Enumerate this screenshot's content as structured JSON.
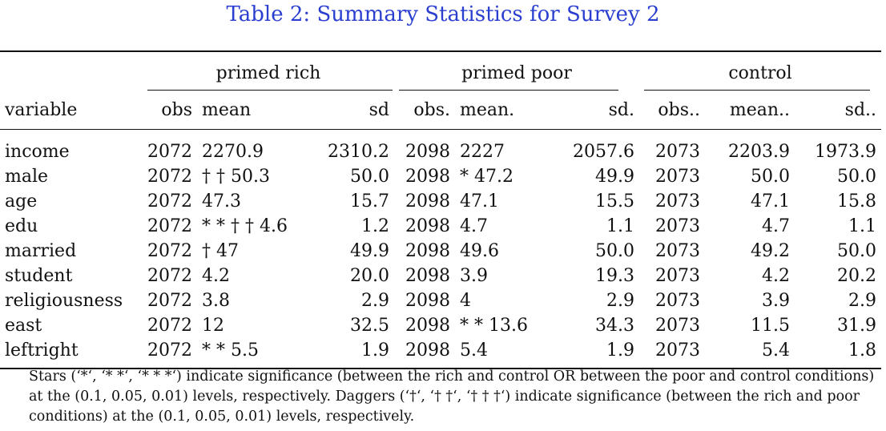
{
  "caption": "Table 2: Summary Statistics for Survey 2",
  "groups": [
    "primed rich",
    "primed poor",
    "control"
  ],
  "headers": [
    "variable",
    "obs",
    "mean",
    "sd",
    "obs.",
    "mean.",
    "sd.",
    "obs..",
    "mean..",
    "sd.."
  ],
  "rows": [
    [
      "income",
      "2072",
      "2270.9",
      "2310.2",
      "2098",
      "2227",
      "2057.6",
      "2073",
      "2203.9",
      "1973.9"
    ],
    [
      "male",
      "2072",
      "† † 50.3",
      "50.0",
      "2098",
      "* 47.2",
      "49.9",
      "2073",
      "50.0",
      "50.0"
    ],
    [
      "age",
      "2072",
      "47.3",
      "15.7",
      "2098",
      "47.1",
      "15.5",
      "2073",
      "47.1",
      "15.8"
    ],
    [
      "edu",
      "2072",
      "* * † † 4.6",
      "1.2",
      "2098",
      "4.7",
      "1.1",
      "2073",
      "4.7",
      "1.1"
    ],
    [
      "married",
      "2072",
      "† 47",
      "49.9",
      "2098",
      "49.6",
      "50.0",
      "2073",
      "49.2",
      "50.0"
    ],
    [
      "student",
      "2072",
      "4.2",
      "20.0",
      "2098",
      "3.9",
      "19.3",
      "2073",
      "4.2",
      "20.2"
    ],
    [
      "religiousness",
      "2072",
      "3.8",
      "2.9",
      "2098",
      "4",
      "2.9",
      "2073",
      "3.9",
      "2.9"
    ],
    [
      "east",
      "2072",
      "12",
      "32.5",
      "2098",
      "* * 13.6",
      "34.3",
      "2073",
      "11.5",
      "31.9"
    ],
    [
      "leftright",
      "2072",
      "* * 5.5",
      "1.9",
      "2098",
      "5.4",
      "1.9",
      "2073",
      "5.4",
      "1.8"
    ]
  ],
  "note": "Stars (‘*‘, ‘* *‘, ‘* * *‘) indicate significance (between the rich and control OR between the poor and control conditions) at the (0.1, 0.05, 0.01) levels, respectively. Daggers (‘†‘, ‘† †‘, ‘† † †‘) indicate significance (between the rich and poor conditions) at the (0.1, 0.05, 0.01) levels, respectively."
}
